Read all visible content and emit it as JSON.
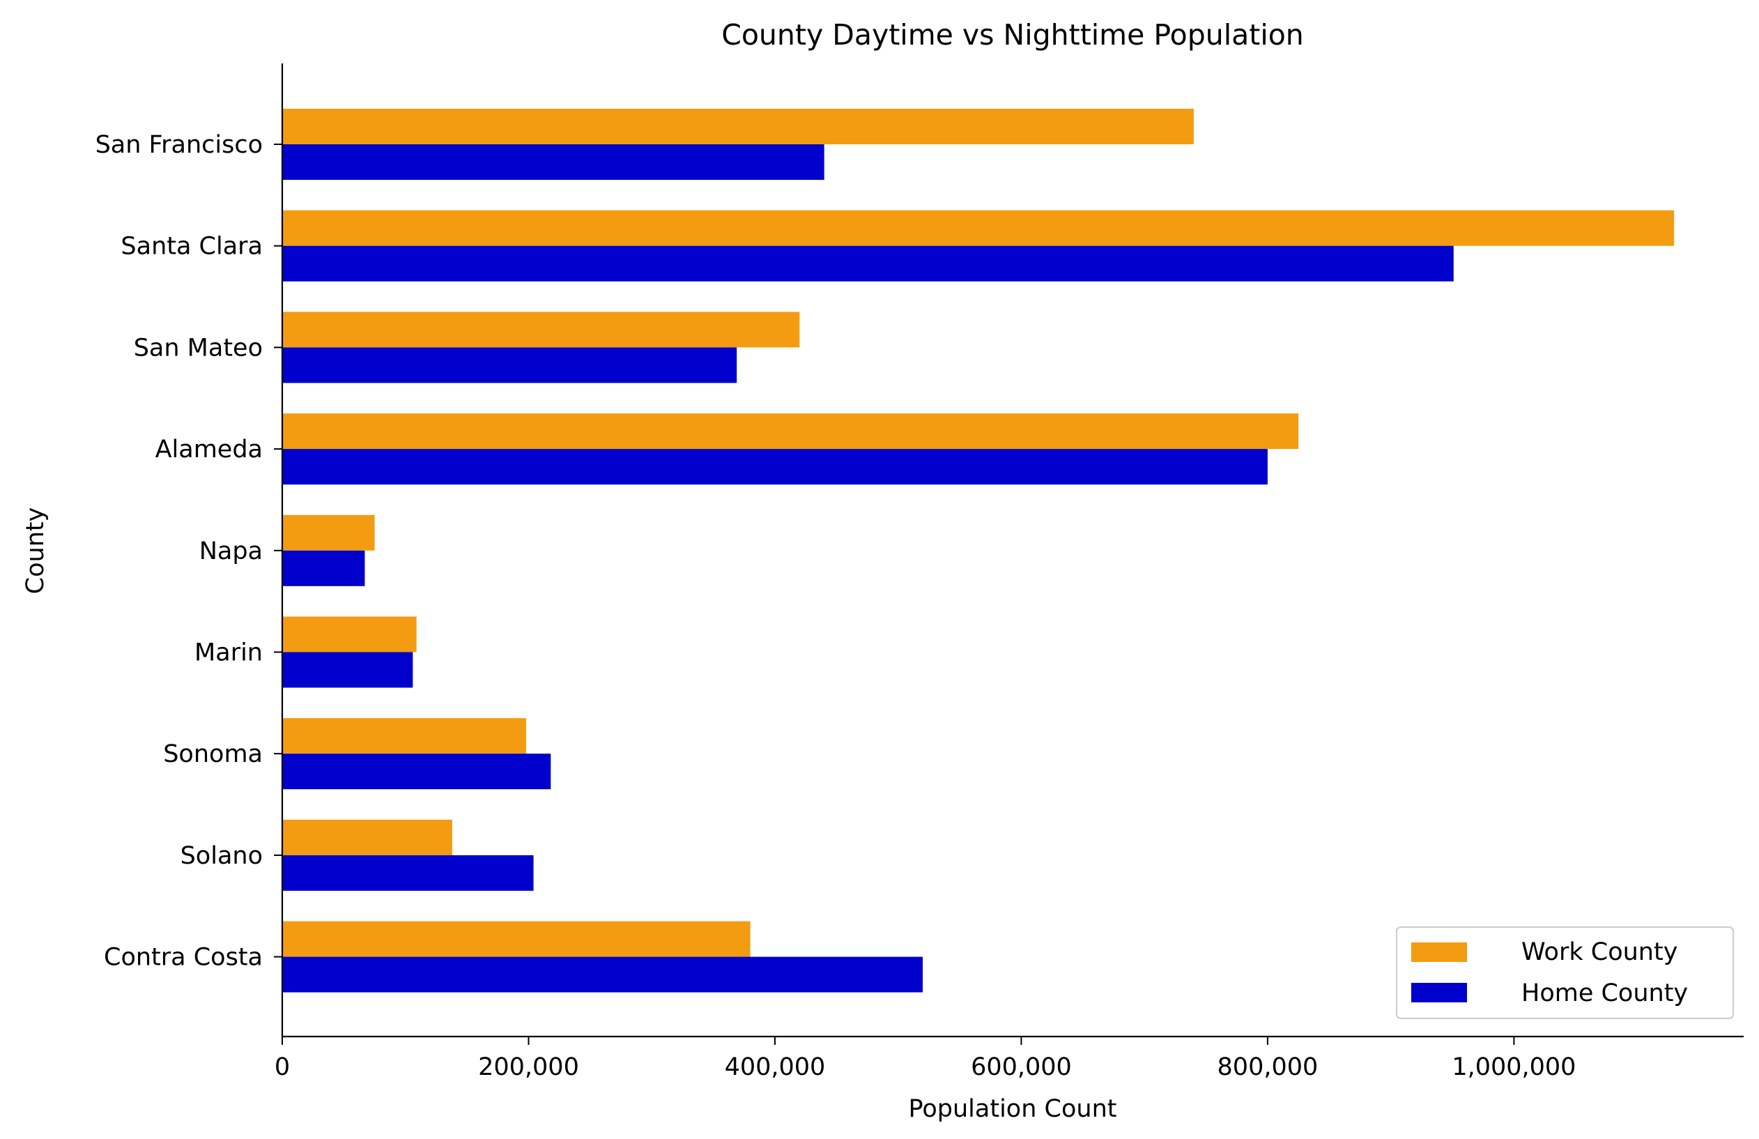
{
  "chart_data": {
    "type": "bar",
    "orientation": "horizontal",
    "title": "County Daytime vs Nighttime Population",
    "xlabel": "Population Count",
    "ylabel": "County",
    "categories": [
      "San Francisco",
      "Santa Clara",
      "San Mateo",
      "Alameda",
      "Napa",
      "Marin",
      "Sonoma",
      "Solano",
      "Contra Costa"
    ],
    "series": [
      {
        "name": "Work County",
        "color": "#f39c12",
        "values": [
          740000,
          1130000,
          420000,
          825000,
          75000,
          109000,
          198000,
          138000,
          380000
        ]
      },
      {
        "name": "Home County",
        "color": "#0000cd",
        "values": [
          440000,
          951000,
          369000,
          800000,
          67000,
          106000,
          218000,
          204000,
          520000
        ]
      }
    ],
    "xlim": [
      0,
      1186500
    ],
    "xticks": [
      0,
      200000,
      400000,
      600000,
      800000,
      1000000
    ],
    "xtick_labels": [
      "0",
      "200,000",
      "400,000",
      "600,000",
      "800,000",
      "1,000,000"
    ],
    "grid": false,
    "legend_position": "lower-right"
  }
}
